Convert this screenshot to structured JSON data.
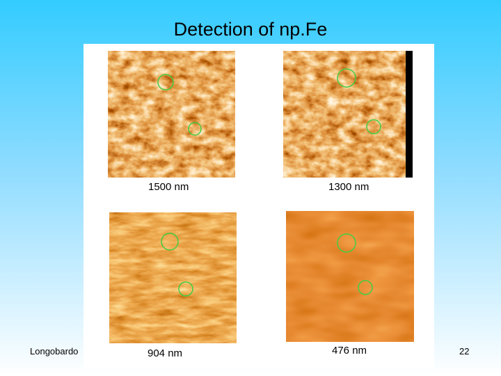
{
  "slide": {
    "title": "Detection of np.Fe",
    "panels": [
      {
        "label": "1500 nm"
      },
      {
        "label": "1300 nm"
      },
      {
        "label": "904 nm"
      },
      {
        "label": "476 nm"
      }
    ],
    "footer": {
      "author": "Longobardo",
      "page": "22"
    }
  }
}
